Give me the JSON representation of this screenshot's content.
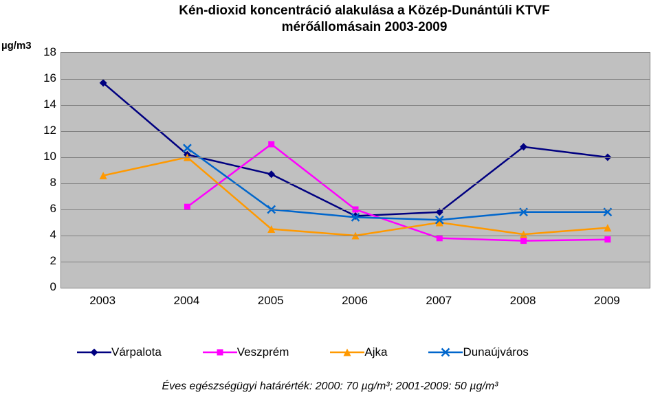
{
  "title_line1": "Kén-dioxid koncentráció alakulása a Közép-Dunántúli KTVF",
  "title_line2": "mérőállomásain 2003-2009",
  "y_axis_label": "µg/m3",
  "footnote": "Éves egészségügyi határérték: 2000: 70 µg/m³; 2001-2009: 50 µg/m³",
  "chart": {
    "type": "line",
    "background_color": "#c0c0c0",
    "grid_color": "#808080",
    "categories": [
      "2003",
      "2004",
      "2005",
      "2006",
      "2007",
      "2008",
      "2009"
    ],
    "ylim": [
      0,
      18
    ],
    "ytick_step": 2,
    "title_fontsize": 19,
    "tick_fontsize": 17,
    "line_width": 2.5,
    "marker_size": 7,
    "series": [
      {
        "name": "Várpalota",
        "color": "#000080",
        "marker": "diamond",
        "values": [
          15.7,
          10.2,
          8.7,
          5.5,
          5.8,
          10.8,
          10.0
        ]
      },
      {
        "name": "Veszprém",
        "color": "#ff00ff",
        "marker": "square",
        "values": [
          null,
          6.2,
          11.0,
          6.0,
          3.8,
          3.6,
          3.7
        ]
      },
      {
        "name": "Ajka",
        "color": "#ff9900",
        "marker": "triangle",
        "values": [
          8.6,
          10.0,
          4.5,
          4.0,
          5.0,
          4.1,
          4.6
        ]
      },
      {
        "name": "Dunaújváros",
        "color": "#0066cc",
        "marker": "x",
        "values": [
          null,
          10.7,
          6.0,
          5.4,
          5.2,
          5.8,
          5.8
        ]
      }
    ]
  }
}
